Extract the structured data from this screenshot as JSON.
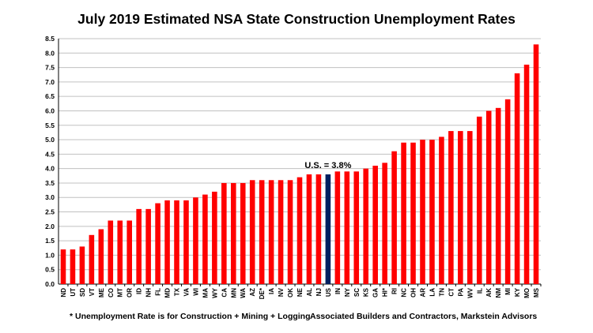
{
  "chart_data": {
    "type": "bar",
    "title": "July 2019 Estimated NSA State Construction Unemployment Rates",
    "xlabel": "",
    "ylabel": "",
    "ylim": [
      0,
      8.5
    ],
    "ytick_step": 0.5,
    "ytick_labels": [
      "0.0",
      "0.5",
      "1.0",
      "1.5",
      "2.0",
      "2.5",
      "3.0",
      "3.5",
      "4.0",
      "4.5",
      "5.0",
      "5.5",
      "6.0",
      "6.5",
      "7.0",
      "7.5",
      "8.0",
      "8.5"
    ],
    "grid": "horizontal",
    "categories": [
      "ND",
      "UT",
      "SD",
      "VT",
      "ME",
      "CO",
      "MT",
      "OR",
      "ID",
      "NH",
      "FL",
      "MD",
      "TX",
      "VA",
      "WI",
      "MA",
      "WY",
      "CA",
      "MN",
      "WA",
      "AZ",
      "DE*",
      "IA",
      "NV",
      "OK",
      "NE",
      "AL",
      "NJ",
      "US",
      "IN",
      "NY",
      "SC",
      "KS",
      "GA",
      "HI*",
      "RI",
      "NC",
      "OH",
      "AR",
      "LA",
      "TN",
      "CT",
      "PA",
      "WV",
      "IL",
      "AK",
      "NM",
      "MI",
      "KY",
      "MO",
      "MS"
    ],
    "values": [
      1.2,
      1.2,
      1.3,
      1.7,
      1.9,
      2.2,
      2.2,
      2.2,
      2.6,
      2.6,
      2.8,
      2.9,
      2.9,
      2.9,
      3.0,
      3.1,
      3.2,
      3.5,
      3.5,
      3.5,
      3.6,
      3.6,
      3.6,
      3.6,
      3.6,
      3.7,
      3.8,
      3.8,
      3.8,
      3.9,
      3.9,
      3.9,
      4.0,
      4.1,
      4.2,
      4.6,
      4.9,
      4.9,
      5.0,
      5.0,
      5.1,
      5.3,
      5.3,
      5.3,
      5.8,
      6.0,
      6.1,
      6.4,
      7.3,
      7.6,
      8.3
    ],
    "highlight_category": "US",
    "annotation": "U.S. = 3.8%",
    "colors": {
      "bar": "#ff0000",
      "highlight": "#002060",
      "grid": "#c0c0c0",
      "axis": "#000000"
    }
  },
  "footnotes": {
    "left": "* Unemployment Rate is for Construction + Mining + Logging",
    "right": "Associated Builders and Contractors, Markstein Advisors"
  }
}
